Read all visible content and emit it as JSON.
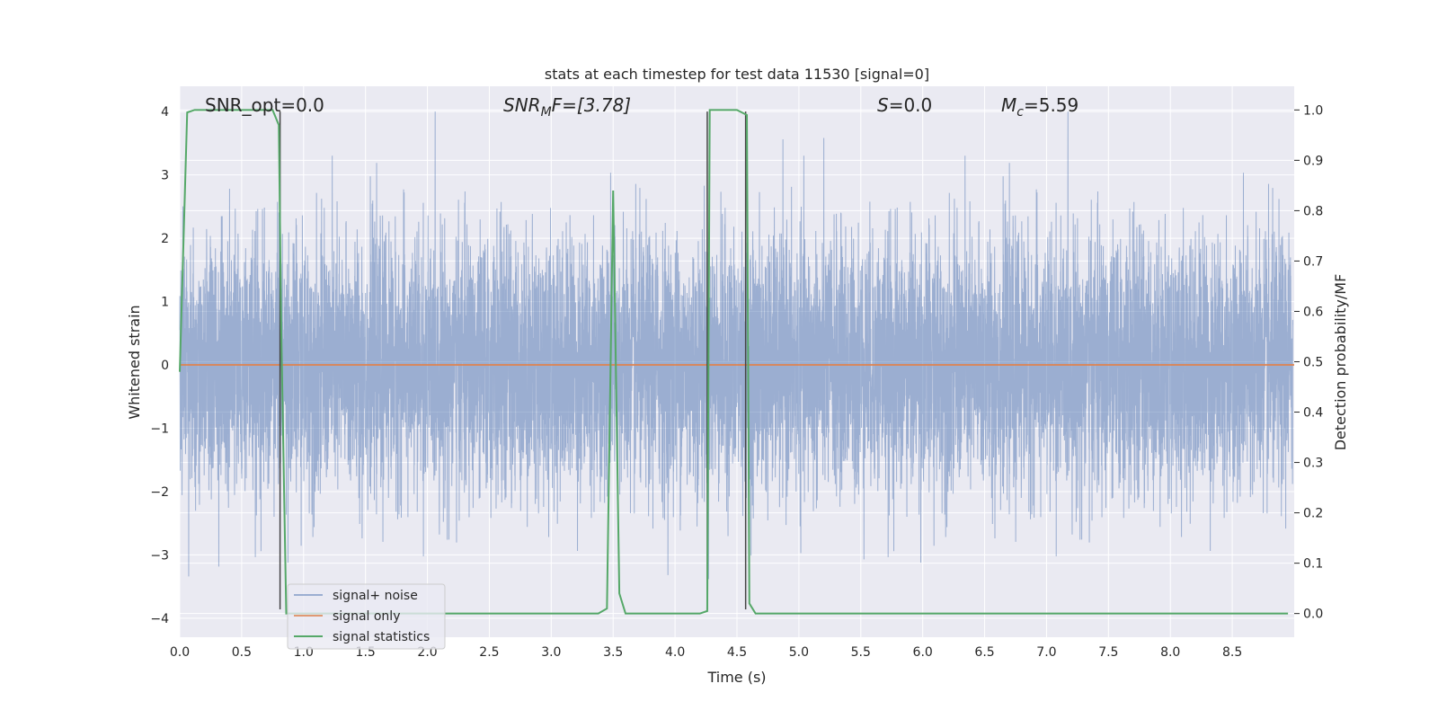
{
  "chart_data": {
    "type": "line",
    "title": "stats at each timestep for test data 11530 [signal=0]",
    "xlabel": "Time (s)",
    "ylabel": "Whitened strain",
    "y2label": "Detection probability/MF",
    "xlim": [
      0.0,
      9.0
    ],
    "ylim": [
      -4.3,
      4.4
    ],
    "y2lim": [
      -0.047,
      1.047
    ],
    "xticks": [
      "0.0",
      "0.5",
      "1.0",
      "1.5",
      "2.0",
      "2.5",
      "3.0",
      "3.5",
      "4.0",
      "4.5",
      "5.0",
      "5.5",
      "6.0",
      "6.5",
      "7.0",
      "7.5",
      "8.0",
      "8.5"
    ],
    "xtick_values": [
      0.0,
      0.5,
      1.0,
      1.5,
      2.0,
      2.5,
      3.0,
      3.5,
      4.0,
      4.5,
      5.0,
      5.5,
      6.0,
      6.5,
      7.0,
      7.5,
      8.0,
      8.5
    ],
    "yticks": [
      "4",
      "3",
      "2",
      "1",
      "0",
      "−1",
      "−2",
      "−3",
      "−4"
    ],
    "ytick_values": [
      4,
      3,
      2,
      1,
      0,
      -1,
      -2,
      -3,
      -4
    ],
    "y2ticks": [
      "1.0",
      "0.9",
      "0.8",
      "0.7",
      "0.6",
      "0.5",
      "0.4",
      "0.3",
      "0.2",
      "0.1",
      "0.0"
    ],
    "y2tick_values": [
      1.0,
      0.9,
      0.8,
      0.7,
      0.6,
      0.5,
      0.4,
      0.3,
      0.2,
      0.1,
      0.0
    ],
    "grid": true,
    "legend_placement": "lower-left",
    "colors": {
      "background": "#eaeaf2",
      "grid": "#ffffff",
      "noise": "#4c72b0",
      "signal_only": "#dd8452",
      "statistics": "#55a868",
      "vlines": "#444444"
    },
    "annotations": {
      "snr_opt": "SNR_opt=0.0",
      "snr_mf_base": "SNR",
      "snr_mf_sub": "M",
      "snr_mf_tail": "F=[3.78]",
      "s_label": "S",
      "s_value": "=0.0",
      "mc_base": "M",
      "mc_sub": "c",
      "mc_value": "=5.59"
    },
    "series": [
      {
        "name": "signal+ noise",
        "kind": "noise",
        "sample_rate_hz": 1024,
        "sigma": 1.0,
        "peak_max": 4.0,
        "peak_min": -4.2,
        "description_axis": "left"
      },
      {
        "name": "signal only",
        "kind": "flat",
        "value": 0.0,
        "description_axis": "left"
      },
      {
        "name": "signal statistics",
        "kind": "line",
        "description_axis": "right",
        "x": [
          0.0,
          0.06,
          0.12,
          0.5,
          0.75,
          0.8,
          0.82,
          0.86,
          0.9,
          1.0,
          3.38,
          3.45,
          3.5,
          3.55,
          3.6,
          3.66,
          4.2,
          4.26,
          4.28,
          4.32,
          4.5,
          4.58,
          4.6,
          4.65,
          4.7,
          5.0,
          8.95
        ],
        "y": [
          0.48,
          0.995,
          1.0,
          1.0,
          1.0,
          0.97,
          0.56,
          0.0,
          0.0,
          0.0,
          0.0,
          0.01,
          0.84,
          0.04,
          0.0,
          0.0,
          0.0,
          0.005,
          1.0,
          1.0,
          1.0,
          0.99,
          0.02,
          0.0,
          0.0,
          0.0,
          0.0
        ]
      }
    ],
    "vlines": [
      {
        "x": 0.81,
        "y_from": 4.0,
        "y_to": -3.86
      },
      {
        "x": 4.26,
        "y_from": 4.0,
        "y_to": -3.86
      },
      {
        "x": 4.57,
        "y_from": 4.0,
        "y_to": -3.86
      }
    ]
  }
}
